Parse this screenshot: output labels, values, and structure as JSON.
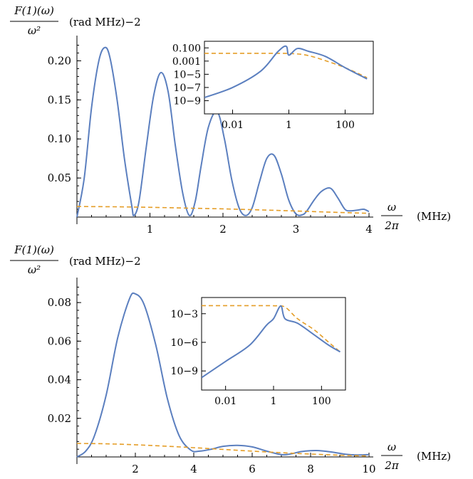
{
  "colors": {
    "blue": "#5b7fbf",
    "orange": "#e59e28"
  },
  "chart_data": [
    {
      "type": "line",
      "ylabel_num": "F(1)(ω)",
      "ylabel_den": "ω²",
      "yunit": "(rad MHz)−2",
      "xlabel_num": "ω",
      "xlabel_den": "2π",
      "xunit": "(MHz)",
      "xlim": [
        0,
        4
      ],
      "ylim": [
        0,
        0.225
      ],
      "xticks": [
        1,
        2,
        3,
        4
      ],
      "xtick_labels": [
        "1",
        "2",
        "3",
        "4"
      ],
      "yticks": [
        0.05,
        0.1,
        0.15,
        0.2
      ],
      "ytick_labels": [
        "0.05",
        "0.10",
        "0.15",
        "0.20"
      ],
      "series": [
        {
          "style": "solid",
          "color": "blue",
          "x": [
            0,
            0.1,
            0.2,
            0.3,
            0.38,
            0.45,
            0.55,
            0.65,
            0.75,
            0.78,
            0.85,
            0.95,
            1.05,
            1.15,
            1.25,
            1.35,
            1.45,
            1.54,
            1.62,
            1.7,
            1.8,
            1.92,
            2.02,
            2.12,
            2.22,
            2.31,
            2.4,
            2.5,
            2.6,
            2.7,
            2.8,
            2.9,
            3.0,
            3.09,
            3.15,
            3.25,
            3.35,
            3.47,
            3.57,
            3.67,
            3.75,
            3.85,
            3.93,
            4.0
          ],
          "y": [
            0,
            0.05,
            0.14,
            0.2,
            0.217,
            0.205,
            0.15,
            0.075,
            0.015,
            0.002,
            0.02,
            0.09,
            0.155,
            0.185,
            0.16,
            0.09,
            0.03,
            0.002,
            0.02,
            0.065,
            0.115,
            0.135,
            0.1,
            0.048,
            0.012,
            0.002,
            0.012,
            0.045,
            0.075,
            0.079,
            0.055,
            0.022,
            0.004,
            0.003,
            0.008,
            0.022,
            0.033,
            0.037,
            0.025,
            0.01,
            0.008,
            0.009,
            0.01,
            0.007
          ]
        },
        {
          "style": "dashed",
          "color": "orange",
          "x": [
            0,
            0.5,
            1.0,
            1.5,
            2.0,
            2.5,
            3.0,
            3.5,
            4.0
          ],
          "y": [
            0.0135,
            0.0132,
            0.0125,
            0.0115,
            0.0105,
            0.0092,
            0.0078,
            0.0062,
            0.0048
          ]
        }
      ],
      "inset": {
        "xscale": "log",
        "yscale": "log",
        "xlim": [
          0.001,
          1000
        ],
        "ylim": [
          1e-11,
          1
        ],
        "xticks": [
          0.01,
          1,
          100
        ],
        "xtick_labels": [
          "0.01",
          "1",
          "100"
        ],
        "yticks": [
          0.1,
          0.001,
          1e-05,
          1e-07,
          1e-09
        ],
        "ytick_labels": [
          "0.100",
          "0.001",
          "10−5",
          "10−7",
          "10−9"
        ],
        "series": [
          {
            "style": "solid",
            "color": "blue",
            "x": [
              0.001,
              0.01,
              0.1,
              0.4,
              0.8,
              1,
              2,
              5,
              20,
              100,
              600
            ],
            "y": [
              3e-09,
              1e-07,
              3e-05,
              0.025,
              0.18,
              0.008,
              0.08,
              0.03,
              0.005,
              0.0001,
              2e-06
            ]
          },
          {
            "style": "dashed",
            "color": "orange",
            "x": [
              0.001,
              0.01,
              0.1,
              0.5,
              1,
              3,
              10,
              100,
              600
            ],
            "y": [
              0.015,
              0.015,
              0.015,
              0.015,
              0.014,
              0.01,
              0.003,
              0.0001,
              3e-06
            ]
          }
        ]
      }
    },
    {
      "type": "line",
      "ylabel_num": "F(1)(ω)",
      "ylabel_den": "ω²",
      "yunit": "(rad MHz)−2",
      "xlabel_num": "ω",
      "xlabel_den": "2π",
      "xunit": "(MHz)",
      "xlim": [
        0,
        10
      ],
      "ylim": [
        0,
        0.09
      ],
      "xticks": [
        2,
        4,
        6,
        8,
        10
      ],
      "xtick_labels": [
        "2",
        "4",
        "6",
        "8",
        "10"
      ],
      "yticks": [
        0.02,
        0.04,
        0.06,
        0.08
      ],
      "ytick_labels": [
        "0.02",
        "0.04",
        "0.06",
        "0.08"
      ],
      "series": [
        {
          "style": "solid",
          "color": "blue",
          "x": [
            0,
            0.3,
            0.6,
            1.0,
            1.4,
            1.8,
            2.0,
            2.3,
            2.7,
            3.1,
            3.5,
            3.9,
            4.2,
            4.6,
            5.0,
            5.5,
            6.0,
            6.5,
            7.0,
            7.3,
            7.7,
            8.2,
            8.7,
            9.2,
            9.6,
            10.0
          ],
          "y": [
            0,
            0.003,
            0.011,
            0.032,
            0.062,
            0.082,
            0.0845,
            0.079,
            0.058,
            0.03,
            0.011,
            0.0035,
            0.003,
            0.004,
            0.0055,
            0.006,
            0.0052,
            0.003,
            0.0012,
            0.0015,
            0.0028,
            0.0033,
            0.0026,
            0.0014,
            0.001,
            0.0012
          ]
        },
        {
          "style": "dashed",
          "color": "orange",
          "x": [
            0,
            1,
            2,
            3,
            4,
            5,
            6,
            7,
            8,
            9,
            10
          ],
          "y": [
            0.007,
            0.0068,
            0.0063,
            0.0056,
            0.0048,
            0.0039,
            0.003,
            0.0022,
            0.0015,
            0.0009,
            0.0005
          ]
        }
      ],
      "inset": {
        "xscale": "log",
        "yscale": "log",
        "xlim": [
          0.001,
          1000
        ],
        "ylim": [
          1e-11,
          0.05
        ],
        "xticks": [
          0.01,
          1,
          100
        ],
        "xtick_labels": [
          "0.01",
          "1",
          "100"
        ],
        "yticks": [
          0.001,
          1e-06,
          1e-09
        ],
        "ytick_labels": [
          "10−3",
          "10−6",
          "10−9"
        ],
        "series": [
          {
            "style": "solid",
            "color": "blue",
            "x": [
              0.001,
              0.01,
              0.1,
              0.5,
              1,
              2,
              3,
              10,
              50,
              200,
              600
            ],
            "y": [
              2e-10,
              1e-08,
              5e-07,
              6e-05,
              0.0003,
              0.0065,
              0.0003,
              0.0001,
              6e-06,
              5e-07,
              1e-07
            ]
          },
          {
            "style": "dashed",
            "color": "orange",
            "x": [
              0.001,
              0.01,
              0.1,
              1,
              3,
              10,
              50,
              200,
              600
            ],
            "y": [
              0.007,
              0.007,
              0.007,
              0.0068,
              0.005,
              0.0003,
              2e-05,
              1e-06,
              1e-07
            ]
          }
        ]
      }
    }
  ]
}
